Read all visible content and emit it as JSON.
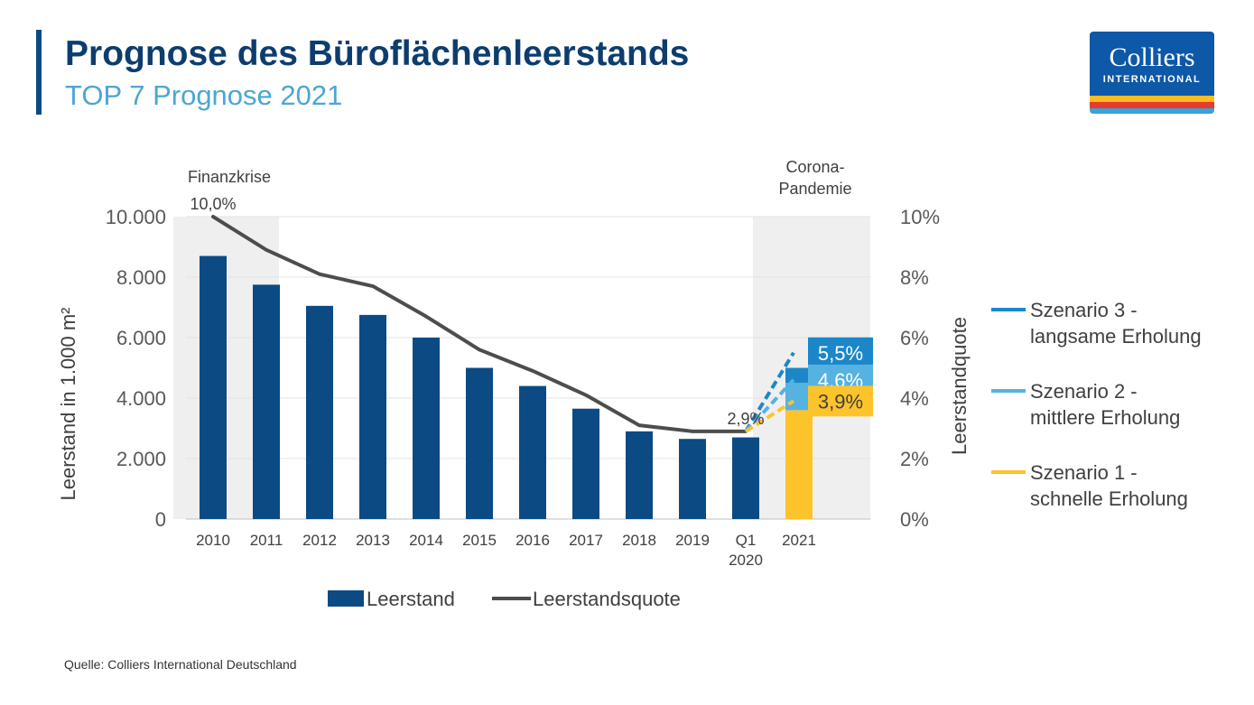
{
  "header": {
    "title": "Prognose des Büroflächenleerstands",
    "subtitle": "TOP 7 Prognose 2021"
  },
  "logo": {
    "name": "Colliers",
    "tagline": "INTERNATIONAL"
  },
  "colors": {
    "navy": "#0c4a84",
    "title": "#0d3d6e",
    "subtitle": "#4ca6d3",
    "accent_bar": "#0c4a84",
    "line": "#4d4d4d",
    "shade": "#efefef",
    "scenario3": "#1b87c8",
    "scenario2": "#56b2e0",
    "scenario1": "#fdc32b",
    "logo_blue": "#0e58a8",
    "logo_yellow": "#fbbd20",
    "logo_red": "#e63c2c",
    "logo_lightblue": "#37a3dc"
  },
  "source": "Quelle: Colliers International Deutschland",
  "chart_data": {
    "type": "bar",
    "categories": [
      "2010",
      "2011",
      "2012",
      "2013",
      "2014",
      "2015",
      "2016",
      "2017",
      "2018",
      "2019",
      "Q1\n2020",
      "2021"
    ],
    "ylabel": "Leerstand in 1.000 m²",
    "y2label": "Leerstandquote",
    "ylim": [
      0,
      10000
    ],
    "y2lim": [
      0,
      10
    ],
    "yticks": [
      "0",
      "2.000",
      "4.000",
      "6.000",
      "8.000",
      "10.000"
    ],
    "y2ticks": [
      "0%",
      "2%",
      "4%",
      "6%",
      "8%",
      "10%"
    ],
    "grid": true,
    "series": [
      {
        "name": "Leerstand",
        "type": "bar",
        "values": [
          8700,
          7750,
          7050,
          6750,
          6000,
          5000,
          4400,
          3650,
          2900,
          2650,
          2700,
          null
        ]
      },
      {
        "name": "Leerstandsquote",
        "type": "line",
        "values": [
          10.0,
          8.9,
          8.1,
          7.7,
          6.7,
          5.6,
          4.9,
          4.1,
          3.1,
          2.9,
          2.9,
          null
        ]
      }
    ],
    "forecast_2021": {
      "bar_stack": [
        {
          "scenario": "Szenario 1",
          "value": 3600
        },
        {
          "scenario": "Szenario 2",
          "value": 4500
        },
        {
          "scenario": "Szenario 3",
          "value": 5000
        }
      ],
      "scenarios": [
        {
          "name": "Szenario 3 - langsame Erholung",
          "legend_lines": [
            "Szenario 3 -",
            "langsame Erholung"
          ],
          "value": 5.5,
          "label": "5,5%"
        },
        {
          "name": "Szenario 2 - mittlere Erholung",
          "legend_lines": [
            "Szenario 2 -",
            "mittlere Erholung"
          ],
          "value": 4.6,
          "label": "4,6%"
        },
        {
          "name": "Szenario 1 - schnelle Erholung",
          "legend_lines": [
            "Szenario 1 -",
            "schnelle Erholung"
          ],
          "value": 3.9,
          "label": "3,9%"
        }
      ]
    },
    "data_labels": [
      {
        "category": "2010",
        "text": "10,0%"
      },
      {
        "category": "Q1\n2020",
        "text": "2,9%"
      }
    ],
    "annotations": [
      {
        "category": "2010",
        "lines": [
          "Finanzkrise"
        ]
      },
      {
        "category": "2021",
        "lines": [
          "Corona-",
          "Pandemie"
        ]
      }
    ],
    "legend": {
      "position": "bottom",
      "items": [
        "Leerstand",
        "Leerstandsquote"
      ]
    }
  }
}
